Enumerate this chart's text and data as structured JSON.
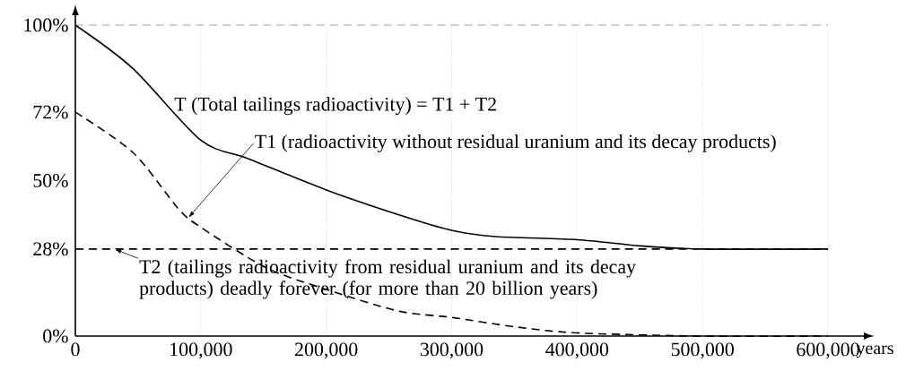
{
  "chart_data": {
    "type": "line",
    "xlabel": "years",
    "xlim": [
      0,
      600000
    ],
    "ylim": [
      0,
      100
    ],
    "xticks": [
      0,
      {
        "value": 100000,
        "label": "100,000"
      },
      {
        "value": 200000,
        "label": "200,000"
      },
      {
        "value": 300000,
        "label": "300,000"
      },
      {
        "value": 400000,
        "label": "400,000"
      },
      {
        "value": 500000,
        "label": "500,000"
      },
      {
        "value": 600000,
        "label": "600,000"
      }
    ],
    "yticks": [
      {
        "value": 0,
        "label": "0%"
      },
      {
        "value": 28,
        "label": "28%"
      },
      {
        "value": 50,
        "label": "50%"
      },
      {
        "value": 72,
        "label": "72%"
      },
      {
        "value": 100,
        "label": "100%"
      }
    ],
    "grid": "x",
    "marker": "none",
    "ref_lines": [
      {
        "axis": "y",
        "value": 100,
        "color": "#888888",
        "line_style": "dashed"
      }
    ],
    "series": [
      {
        "color": "#000000",
        "line_style": "solid",
        "x": [
          0,
          46000,
          100000,
          138000,
          200000,
          258000,
          300000,
          335000,
          400000,
          450000,
          500000,
          600000
        ],
        "values": [
          100,
          86,
          63,
          57,
          47,
          39,
          34,
          32,
          31,
          29,
          28,
          28
        ]
      },
      {
        "color": "#000000",
        "line_style": "dashed",
        "x": [
          0,
          46000,
          82000,
          100000,
          152000,
          200000,
          258000,
          300000,
          350000,
          400000,
          500000,
          600000
        ],
        "values": [
          72,
          59,
          41,
          35,
          22,
          15,
          8,
          6,
          3,
          1,
          0,
          0
        ]
      },
      {
        "color": "#000000",
        "line_style": "dashed",
        "x": [
          0,
          600000
        ],
        "values": [
          28,
          28
        ]
      }
    ],
    "annotations": [
      "T (Total tailings radioactivity) = T1 + T2",
      {
        "text": "T1  (radioactivity without residual uranium and its decay products)",
        "x": 90000,
        "y": 38
      },
      {
        "text": "T2 (tailings radioactivity from residual uranium and its decay products) deadly forever (for more than 20 billion years)",
        "x": 31000,
        "y": 28
      }
    ]
  }
}
